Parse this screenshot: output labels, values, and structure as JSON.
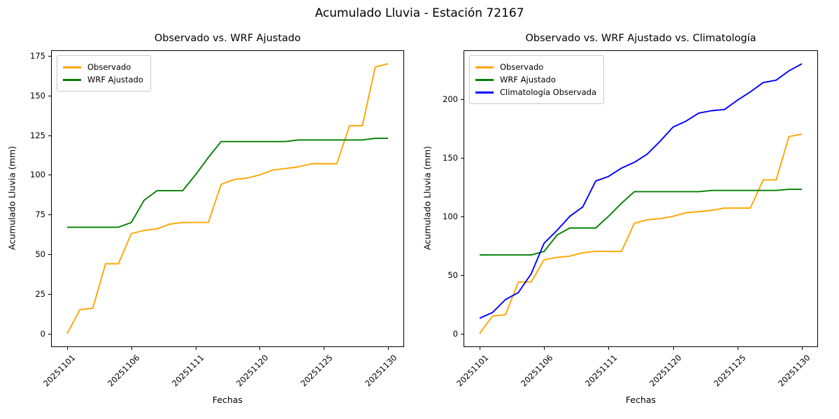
{
  "figure": {
    "title": "Acumulado Lluvia - Estación 72167",
    "background_color": "#ffffff"
  },
  "chart_data": [
    {
      "type": "line",
      "title": "Observado vs. WRF Ajustado",
      "xlabel": "Fechas",
      "ylabel": "Acumulado Lluvia (mm)",
      "grid": false,
      "legend_position": "upper-left",
      "xlim": [
        -1.25,
        26.25
      ],
      "ylim": [
        -8.5,
        178.5
      ],
      "y_ticks": [
        0,
        25,
        50,
        75,
        100,
        125,
        150,
        175
      ],
      "x_ticks": [
        {
          "index": 0,
          "label": "20251101"
        },
        {
          "index": 5,
          "label": "20251106"
        },
        {
          "index": 10,
          "label": "20251111"
        },
        {
          "index": 15,
          "label": "20251120"
        },
        {
          "index": 20,
          "label": "20251125"
        },
        {
          "index": 25,
          "label": "20251130"
        }
      ],
      "series": [
        {
          "name": "Observado",
          "color": "#ffa500",
          "values": [
            0,
            15,
            16,
            44,
            44,
            63,
            65,
            66,
            69,
            70,
            70,
            70,
            94,
            97,
            98,
            100,
            103,
            104,
            105,
            107,
            107,
            107,
            131,
            131,
            168,
            170
          ]
        },
        {
          "name": "WRF Ajustado",
          "color": "#008000",
          "values": [
            67,
            67,
            67,
            67,
            67,
            70,
            84,
            90,
            90,
            90,
            100,
            111,
            121,
            121,
            121,
            121,
            121,
            121,
            122,
            122,
            122,
            122,
            122,
            122,
            123,
            123
          ]
        }
      ]
    },
    {
      "type": "line",
      "title": "Observado vs. WRF Ajustado vs. Climatología",
      "xlabel": "Fechas",
      "ylabel": "Acumulado Lluvia (mm)",
      "grid": false,
      "legend_position": "upper-left",
      "xlim": [
        -1.25,
        26.25
      ],
      "ylim": [
        -11.5,
        241.5
      ],
      "y_ticks": [
        0,
        50,
        100,
        150,
        200
      ],
      "x_ticks": [
        {
          "index": 0,
          "label": "20251101"
        },
        {
          "index": 5,
          "label": "20251106"
        },
        {
          "index": 10,
          "label": "20251111"
        },
        {
          "index": 15,
          "label": "20251120"
        },
        {
          "index": 20,
          "label": "20251125"
        },
        {
          "index": 25,
          "label": "20251130"
        }
      ],
      "series": [
        {
          "name": "Observado",
          "color": "#ffa500",
          "values": [
            0,
            15,
            16,
            44,
            44,
            63,
            65,
            66,
            69,
            70,
            70,
            70,
            94,
            97,
            98,
            100,
            103,
            104,
            105,
            107,
            107,
            107,
            131,
            131,
            168,
            170
          ]
        },
        {
          "name": "WRF Ajustado",
          "color": "#008000",
          "values": [
            67,
            67,
            67,
            67,
            67,
            70,
            84,
            90,
            90,
            90,
            100,
            111,
            121,
            121,
            121,
            121,
            121,
            121,
            122,
            122,
            122,
            122,
            122,
            122,
            123,
            123
          ]
        },
        {
          "name": "Climatología Observada",
          "color": "#0000ff",
          "values": [
            13,
            18,
            29,
            35,
            51,
            77,
            88,
            100,
            108,
            130,
            134,
            141,
            146,
            153,
            164,
            176,
            181,
            188,
            190,
            191,
            199,
            206,
            214,
            216,
            224,
            230
          ]
        }
      ]
    }
  ]
}
